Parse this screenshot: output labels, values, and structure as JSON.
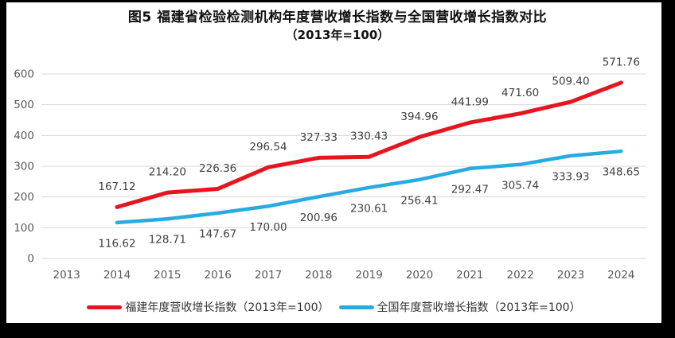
{
  "title": {
    "line1": "图5  福建省检验检测机构年度营收增长指数与全国营收增长指数对比",
    "line2": "（2013年=100）"
  },
  "chart_data": {
    "type": "line",
    "categories": [
      "2013",
      "2014",
      "2015",
      "2016",
      "2017",
      "2018",
      "2019",
      "2020",
      "2021",
      "2022",
      "2023",
      "2024"
    ],
    "series": [
      {
        "name": "福建年度营收增长指数（2013年=100）",
        "color": "#E8141E",
        "values": [
          null,
          167.12,
          214.2,
          226.36,
          296.54,
          327.33,
          330.43,
          394.96,
          441.99,
          471.6,
          509.4,
          571.76
        ]
      },
      {
        "name": "全国年度营收增长指数（2013年=100）",
        "color": "#29ABE2",
        "values": [
          null,
          116.62,
          128.71,
          147.67,
          170.0,
          200.96,
          230.61,
          256.41,
          292.47,
          305.74,
          333.93,
          348.65
        ]
      }
    ],
    "ylim": [
      0,
      600
    ],
    "ytick_interval": 100,
    "ytick_labels": [
      "0",
      "100",
      "200",
      "300",
      "400",
      "500",
      "600"
    ],
    "grid": true,
    "data_labels": true,
    "data_label_decimals": 2,
    "legend_position": "bottom"
  },
  "colors": {
    "frame": "#000000",
    "panel_background": "#ffffff",
    "gridline": "#D9D9D9",
    "axis_text": "#595959",
    "data_label_text": "#404040",
    "title_text": "#111111",
    "legend_text": "#333333"
  }
}
